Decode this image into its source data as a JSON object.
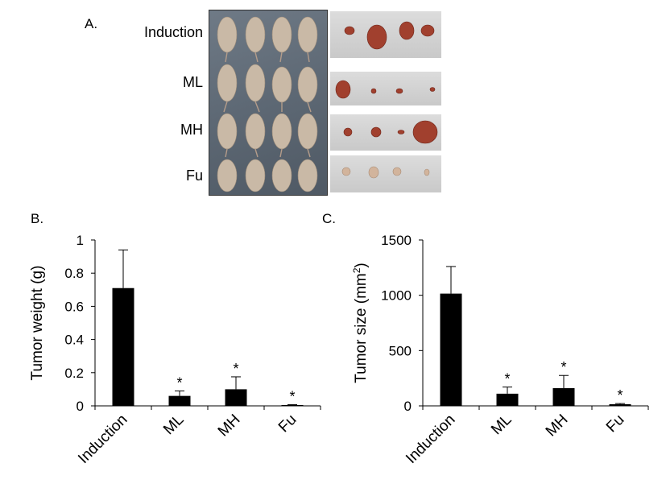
{
  "panel_a": {
    "label": "A.",
    "groups": [
      "Induction",
      "ML",
      "MH",
      "Fu"
    ]
  },
  "chart_data": [
    {
      "panel_label": "B.",
      "type": "bar",
      "categories": [
        "Induction",
        "ML",
        "MH",
        "Fu"
      ],
      "values": [
        0.71,
        0.06,
        0.1,
        0.005
      ],
      "errors": [
        0.23,
        0.03,
        0.075,
        0.002
      ],
      "significance": [
        "",
        "*",
        "*",
        "*"
      ],
      "ylabel": "Tumor weight (g)",
      "ylim": [
        0,
        1
      ],
      "yticks": [
        0,
        0.2,
        0.4,
        0.6,
        0.8,
        1
      ],
      "ytick_labels": [
        "0",
        "0.2",
        "0.4",
        "0.6",
        "0.8",
        "1"
      ],
      "bar_color": "#000000",
      "grid": false
    },
    {
      "panel_label": "C.",
      "type": "bar",
      "categories": [
        "Induction",
        "ML",
        "MH",
        "Fu"
      ],
      "values": [
        1015,
        110,
        160,
        15
      ],
      "errors": [
        245,
        60,
        115,
        6
      ],
      "significance": [
        "",
        "*",
        "*",
        "*"
      ],
      "ylabel": "Tumor size (mm",
      "ylabel_sup": "2",
      "ylabel_end": ")",
      "ylim": [
        0,
        1500
      ],
      "yticks": [
        0,
        500,
        1000,
        1500
      ],
      "ytick_labels": [
        "0",
        "500",
        "1000",
        "1500"
      ],
      "bar_color": "#000000",
      "grid": false
    }
  ]
}
